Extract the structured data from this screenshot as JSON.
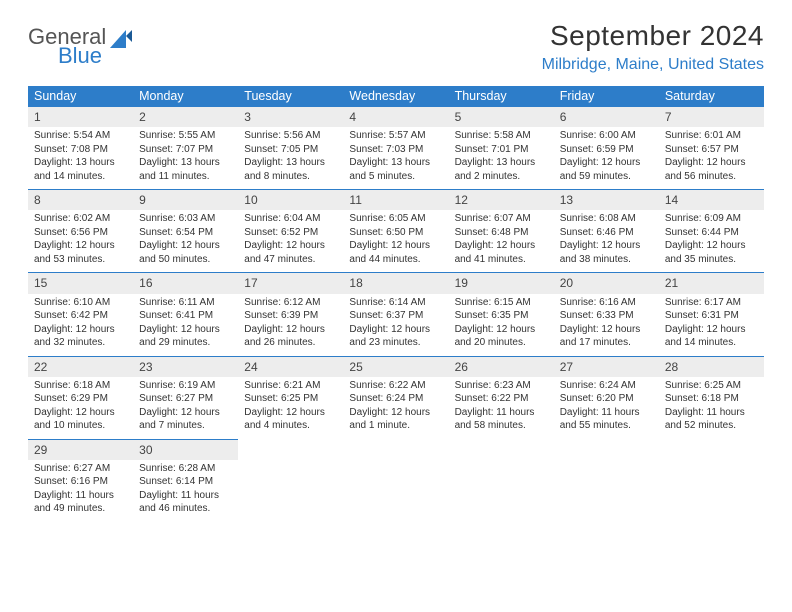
{
  "branding": {
    "logo_word1": "General",
    "logo_word2": "Blue",
    "logo_color_grey": "#555555",
    "logo_color_blue": "#2d7dc9"
  },
  "header": {
    "month_title": "September 2024",
    "location": "Milbridge, Maine, United States"
  },
  "styling": {
    "header_bar_bg": "#2d7dc9",
    "header_bar_text": "#ffffff",
    "daynum_bar_bg": "#ededed",
    "day_border_color": "#2d7dc9",
    "body_text_color": "#333333",
    "page_bg": "#ffffff",
    "title_fontsize": 28,
    "location_fontsize": 16,
    "dow_fontsize": 12.5,
    "daynum_fontsize": 12,
    "body_fontsize": 10
  },
  "days_of_week": [
    "Sunday",
    "Monday",
    "Tuesday",
    "Wednesday",
    "Thursday",
    "Friday",
    "Saturday"
  ],
  "weeks": [
    [
      {
        "n": "1",
        "sunrise": "Sunrise: 5:54 AM",
        "sunset": "Sunset: 7:08 PM",
        "daylight": "Daylight: 13 hours and 14 minutes."
      },
      {
        "n": "2",
        "sunrise": "Sunrise: 5:55 AM",
        "sunset": "Sunset: 7:07 PM",
        "daylight": "Daylight: 13 hours and 11 minutes."
      },
      {
        "n": "3",
        "sunrise": "Sunrise: 5:56 AM",
        "sunset": "Sunset: 7:05 PM",
        "daylight": "Daylight: 13 hours and 8 minutes."
      },
      {
        "n": "4",
        "sunrise": "Sunrise: 5:57 AM",
        "sunset": "Sunset: 7:03 PM",
        "daylight": "Daylight: 13 hours and 5 minutes."
      },
      {
        "n": "5",
        "sunrise": "Sunrise: 5:58 AM",
        "sunset": "Sunset: 7:01 PM",
        "daylight": "Daylight: 13 hours and 2 minutes."
      },
      {
        "n": "6",
        "sunrise": "Sunrise: 6:00 AM",
        "sunset": "Sunset: 6:59 PM",
        "daylight": "Daylight: 12 hours and 59 minutes."
      },
      {
        "n": "7",
        "sunrise": "Sunrise: 6:01 AM",
        "sunset": "Sunset: 6:57 PM",
        "daylight": "Daylight: 12 hours and 56 minutes."
      }
    ],
    [
      {
        "n": "8",
        "sunrise": "Sunrise: 6:02 AM",
        "sunset": "Sunset: 6:56 PM",
        "daylight": "Daylight: 12 hours and 53 minutes."
      },
      {
        "n": "9",
        "sunrise": "Sunrise: 6:03 AM",
        "sunset": "Sunset: 6:54 PM",
        "daylight": "Daylight: 12 hours and 50 minutes."
      },
      {
        "n": "10",
        "sunrise": "Sunrise: 6:04 AM",
        "sunset": "Sunset: 6:52 PM",
        "daylight": "Daylight: 12 hours and 47 minutes."
      },
      {
        "n": "11",
        "sunrise": "Sunrise: 6:05 AM",
        "sunset": "Sunset: 6:50 PM",
        "daylight": "Daylight: 12 hours and 44 minutes."
      },
      {
        "n": "12",
        "sunrise": "Sunrise: 6:07 AM",
        "sunset": "Sunset: 6:48 PM",
        "daylight": "Daylight: 12 hours and 41 minutes."
      },
      {
        "n": "13",
        "sunrise": "Sunrise: 6:08 AM",
        "sunset": "Sunset: 6:46 PM",
        "daylight": "Daylight: 12 hours and 38 minutes."
      },
      {
        "n": "14",
        "sunrise": "Sunrise: 6:09 AM",
        "sunset": "Sunset: 6:44 PM",
        "daylight": "Daylight: 12 hours and 35 minutes."
      }
    ],
    [
      {
        "n": "15",
        "sunrise": "Sunrise: 6:10 AM",
        "sunset": "Sunset: 6:42 PM",
        "daylight": "Daylight: 12 hours and 32 minutes."
      },
      {
        "n": "16",
        "sunrise": "Sunrise: 6:11 AM",
        "sunset": "Sunset: 6:41 PM",
        "daylight": "Daylight: 12 hours and 29 minutes."
      },
      {
        "n": "17",
        "sunrise": "Sunrise: 6:12 AM",
        "sunset": "Sunset: 6:39 PM",
        "daylight": "Daylight: 12 hours and 26 minutes."
      },
      {
        "n": "18",
        "sunrise": "Sunrise: 6:14 AM",
        "sunset": "Sunset: 6:37 PM",
        "daylight": "Daylight: 12 hours and 23 minutes."
      },
      {
        "n": "19",
        "sunrise": "Sunrise: 6:15 AM",
        "sunset": "Sunset: 6:35 PM",
        "daylight": "Daylight: 12 hours and 20 minutes."
      },
      {
        "n": "20",
        "sunrise": "Sunrise: 6:16 AM",
        "sunset": "Sunset: 6:33 PM",
        "daylight": "Daylight: 12 hours and 17 minutes."
      },
      {
        "n": "21",
        "sunrise": "Sunrise: 6:17 AM",
        "sunset": "Sunset: 6:31 PM",
        "daylight": "Daylight: 12 hours and 14 minutes."
      }
    ],
    [
      {
        "n": "22",
        "sunrise": "Sunrise: 6:18 AM",
        "sunset": "Sunset: 6:29 PM",
        "daylight": "Daylight: 12 hours and 10 minutes."
      },
      {
        "n": "23",
        "sunrise": "Sunrise: 6:19 AM",
        "sunset": "Sunset: 6:27 PM",
        "daylight": "Daylight: 12 hours and 7 minutes."
      },
      {
        "n": "24",
        "sunrise": "Sunrise: 6:21 AM",
        "sunset": "Sunset: 6:25 PM",
        "daylight": "Daylight: 12 hours and 4 minutes."
      },
      {
        "n": "25",
        "sunrise": "Sunrise: 6:22 AM",
        "sunset": "Sunset: 6:24 PM",
        "daylight": "Daylight: 12 hours and 1 minute."
      },
      {
        "n": "26",
        "sunrise": "Sunrise: 6:23 AM",
        "sunset": "Sunset: 6:22 PM",
        "daylight": "Daylight: 11 hours and 58 minutes."
      },
      {
        "n": "27",
        "sunrise": "Sunrise: 6:24 AM",
        "sunset": "Sunset: 6:20 PM",
        "daylight": "Daylight: 11 hours and 55 minutes."
      },
      {
        "n": "28",
        "sunrise": "Sunrise: 6:25 AM",
        "sunset": "Sunset: 6:18 PM",
        "daylight": "Daylight: 11 hours and 52 minutes."
      }
    ],
    [
      {
        "n": "29",
        "sunrise": "Sunrise: 6:27 AM",
        "sunset": "Sunset: 6:16 PM",
        "daylight": "Daylight: 11 hours and 49 minutes."
      },
      {
        "n": "30",
        "sunrise": "Sunrise: 6:28 AM",
        "sunset": "Sunset: 6:14 PM",
        "daylight": "Daylight: 11 hours and 46 minutes."
      },
      null,
      null,
      null,
      null,
      null
    ]
  ]
}
